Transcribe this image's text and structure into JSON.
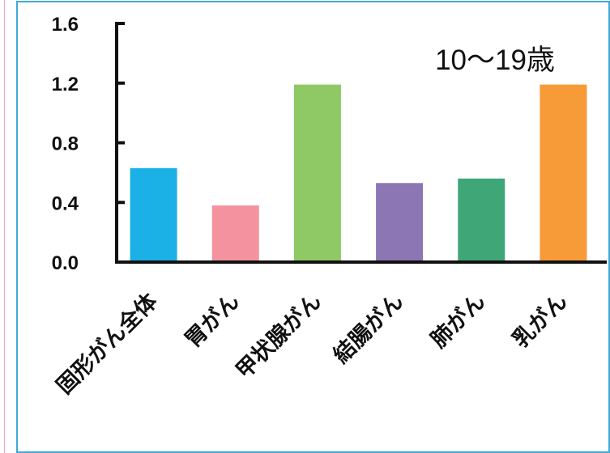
{
  "annotation": "10〜19歳",
  "chart_data": {
    "type": "bar",
    "categories": [
      "固形がん全体",
      "胃がん",
      "甲状腺がん",
      "結腸がん",
      "肺がん",
      "乳がん"
    ],
    "values": [
      0.63,
      0.38,
      1.19,
      0.53,
      0.56,
      1.19
    ],
    "bar_colors": [
      "#1bb0e6",
      "#f4939f",
      "#8ec965",
      "#8c76b3",
      "#3fa678",
      "#f79a38"
    ],
    "yticks": [
      "0.0",
      "0.4",
      "0.8",
      "1.2",
      "1.6"
    ],
    "ylim": [
      0,
      1.6
    ],
    "title": "",
    "xlabel": "",
    "ylabel": "",
    "grid": false,
    "axis_color": "#111111"
  }
}
